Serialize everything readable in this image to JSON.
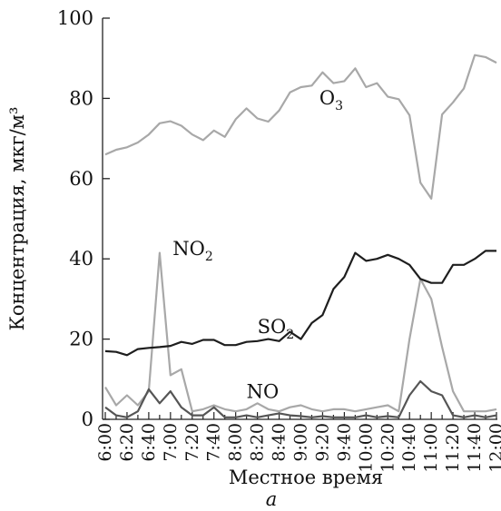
{
  "chart_data": {
    "type": "line",
    "ylabel": "Концентрация, мкг/м³",
    "xlabel": "Местное время",
    "panel_label": "а",
    "ylim": [
      0,
      100
    ],
    "yticks": [
      0,
      20,
      40,
      60,
      80,
      100
    ],
    "x_tick_labels": [
      "6:00",
      "6:20",
      "6:40",
      "7:00",
      "7:20",
      "7:40",
      "8:00",
      "8:20",
      "8:40",
      "9:00",
      "9:20",
      "9:40",
      "10:00",
      "10:20",
      "10:40",
      "11:00",
      "11:20",
      "11:40",
      "12:00"
    ],
    "x_count": 37,
    "series": [
      {
        "name": "O3",
        "label_base": "O",
        "label_sub": "3",
        "color": "#a8a8a8",
        "values": [
          66,
          67.2,
          67.8,
          69,
          71,
          73.8,
          74.3,
          73.2,
          71,
          69.6,
          72,
          70.4,
          74.8,
          77.5,
          75,
          74.2,
          77,
          81.5,
          82.8,
          83.2,
          86.5,
          83.8,
          84.3,
          87.5,
          82.8,
          83.8,
          80.4,
          79.8,
          75.8,
          59,
          55,
          76,
          79,
          82.5,
          90.8,
          90.3,
          88.9
        ],
        "label_anchor": {
          "x": 19.7,
          "y": 78.5
        }
      },
      {
        "name": "NO2",
        "label_base": "NO",
        "label_sub": "2",
        "color": "#a8a8a8",
        "values": [
          8,
          3.5,
          6,
          3.5,
          7,
          41.5,
          11,
          12.5,
          2,
          2.5,
          3.5,
          2.5,
          2,
          2.5,
          4,
          2.5,
          2,
          3,
          3.5,
          2.5,
          2,
          2.5,
          2.5,
          2,
          2.5,
          3,
          3.5,
          2,
          20,
          35,
          30,
          18,
          7,
          2,
          2,
          2,
          2.5
        ],
        "label_anchor": {
          "x": 6.2,
          "y": 41
        }
      },
      {
        "name": "SO2",
        "label_base": "SO",
        "label_sub": "2",
        "color": "#1e1e1e",
        "values": [
          17,
          16.8,
          16,
          17.5,
          17.8,
          18,
          18.3,
          19.3,
          18.8,
          19.8,
          19.8,
          18.5,
          18.5,
          19.3,
          19.5,
          20,
          19.5,
          21.8,
          20,
          24,
          26,
          32.5,
          35.5,
          41.5,
          39.5,
          40,
          41,
          40,
          38.5,
          35,
          34,
          34,
          38.5,
          38.5,
          40,
          42,
          42
        ],
        "label_anchor": {
          "x": 14.0,
          "y": 21.5
        }
      },
      {
        "name": "NO",
        "label_base": "NO",
        "label_sub": "",
        "color": "#555555",
        "values": [
          3,
          1,
          0.5,
          2,
          7.5,
          4,
          7,
          3,
          1,
          1,
          3,
          0.5,
          0.5,
          1,
          0.5,
          1,
          1.5,
          1,
          0.8,
          0.5,
          0.8,
          0.5,
          0.5,
          0.5,
          1,
          0.5,
          0.8,
          0.5,
          6,
          9.5,
          7,
          6,
          1,
          0.5,
          1,
          0.5,
          1
        ],
        "label_anchor": {
          "x": 13.0,
          "y": 5.3
        }
      }
    ]
  }
}
